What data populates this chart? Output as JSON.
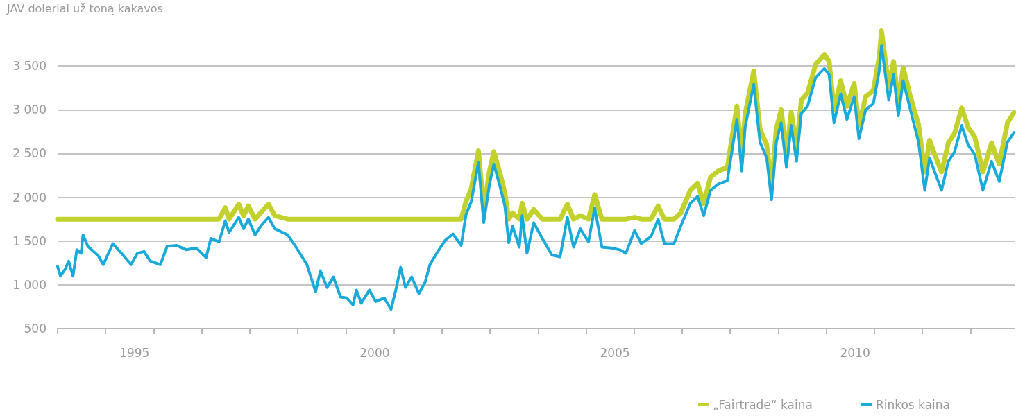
{
  "chart_data": {
    "type": "line",
    "ylabel": "JAV doleriai už toną kakavos",
    "x": [
      1993.4,
      1993.46,
      1993.56,
      1993.63,
      1993.72,
      1993.8,
      1993.89,
      1993.93,
      1994.03,
      1994.25,
      1994.35,
      1994.55,
      1994.73,
      1994.93,
      1995.06,
      1995.2,
      1995.33,
      1995.54,
      1995.68,
      1995.88,
      1996.08,
      1996.29,
      1996.49,
      1996.59,
      1996.76,
      1996.89,
      1996.97,
      1997.17,
      1997.27,
      1997.37,
      1997.51,
      1997.64,
      1997.79,
      1997.92,
      1998.19,
      1998.34,
      1998.59,
      1998.77,
      1998.87,
      1999.01,
      1999.14,
      1999.29,
      1999.42,
      1999.55,
      1999.62,
      1999.72,
      1999.89,
      2000.02,
      2000.2,
      2000.34,
      2000.44,
      2000.54,
      2000.64,
      2000.77,
      2000.92,
      2001.05,
      2001.15,
      2001.29,
      2001.47,
      2001.63,
      2001.8,
      2001.9,
      2002.01,
      2002.16,
      2002.27,
      2002.39,
      2002.48,
      2002.62,
      2002.71,
      2002.79,
      2002.87,
      2003.01,
      2003.07,
      2003.17,
      2003.31,
      2003.49,
      2003.69,
      2003.86,
      2004.01,
      2004.14,
      2004.28,
      2004.45,
      2004.58,
      2004.73,
      2004.93,
      2005.1,
      2005.23,
      2005.41,
      2005.55,
      2005.75,
      2005.9,
      2006.03,
      2006.23,
      2006.37,
      2006.57,
      2006.72,
      2006.85,
      2006.99,
      2007.15,
      2007.34,
      2007.54,
      2007.64,
      2007.71,
      2007.89,
      2008.02,
      2008.16,
      2008.26,
      2008.36,
      2008.46,
      2008.57,
      2008.67,
      2008.78,
      2008.88,
      2009.01,
      2009.18,
      2009.36,
      2009.46,
      2009.56,
      2009.7,
      2009.83,
      2009.98,
      2010.08,
      2010.22,
      2010.38,
      2010.5,
      2010.55,
      2010.7,
      2010.8,
      2010.9,
      2011.0,
      2011.15,
      2011.32,
      2011.45,
      2011.55,
      2011.67,
      2011.8,
      2011.94,
      2012.07,
      2012.22,
      2012.35,
      2012.49,
      2012.66,
      2012.84,
      2013.0,
      2013.17,
      2013.31
    ],
    "series": [
      {
        "name": "„Fairtrade“ kaina",
        "color": "#c3d12d",
        "values": [
          1750,
          1750,
          1750,
          1750,
          1750,
          1750,
          1750,
          1750,
          1750,
          1750,
          1750,
          1750,
          1750,
          1750,
          1750,
          1750,
          1750,
          1750,
          1750,
          1750,
          1750,
          1750,
          1750,
          1750,
          1750,
          1880,
          1750,
          1920,
          1790,
          1900,
          1750,
          1830,
          1920,
          1790,
          1750,
          1750,
          1750,
          1750,
          1750,
          1750,
          1750,
          1750,
          1750,
          1750,
          1750,
          1750,
          1750,
          1750,
          1750,
          1750,
          1750,
          1750,
          1750,
          1750,
          1750,
          1750,
          1750,
          1750,
          1750,
          1750,
          1750,
          1950,
          2100,
          2530,
          1860,
          2300,
          2520,
          2250,
          2050,
          1750,
          1820,
          1750,
          1930,
          1750,
          1860,
          1750,
          1750,
          1750,
          1920,
          1750,
          1790,
          1750,
          2030,
          1750,
          1750,
          1750,
          1750,
          1770,
          1750,
          1750,
          1900,
          1750,
          1750,
          1820,
          2080,
          2160,
          1930,
          2230,
          2300,
          2340,
          3040,
          2450,
          2950,
          3440,
          2780,
          2600,
          2120,
          2780,
          3000,
          2490,
          2970,
          2560,
          3110,
          3190,
          3520,
          3630,
          3550,
          3000,
          3330,
          3040,
          3300,
          2820,
          3150,
          3220,
          3600,
          3900,
          3260,
          3550,
          3080,
          3480,
          3150,
          2830,
          2290,
          2650,
          2470,
          2290,
          2620,
          2730,
          3020,
          2800,
          2690,
          2290,
          2620,
          2380,
          2850,
          2970
        ]
      },
      {
        "name": "Rinkos kaina",
        "color": "#1aaad9",
        "values": [
          1210,
          1100,
          1180,
          1270,
          1100,
          1400,
          1360,
          1570,
          1440,
          1330,
          1230,
          1470,
          1360,
          1230,
          1360,
          1380,
          1270,
          1230,
          1440,
          1450,
          1400,
          1420,
          1310,
          1530,
          1490,
          1730,
          1600,
          1770,
          1640,
          1750,
          1570,
          1680,
          1770,
          1640,
          1570,
          1450,
          1230,
          920,
          1160,
          970,
          1090,
          860,
          850,
          770,
          940,
          790,
          940,
          810,
          850,
          720,
          940,
          1200,
          970,
          1090,
          900,
          1030,
          1230,
          1360,
          1510,
          1580,
          1450,
          1800,
          1950,
          2400,
          1710,
          2150,
          2380,
          2100,
          1900,
          1480,
          1670,
          1430,
          1790,
          1360,
          1710,
          1530,
          1340,
          1320,
          1770,
          1430,
          1640,
          1490,
          1880,
          1430,
          1420,
          1400,
          1360,
          1620,
          1470,
          1550,
          1750,
          1470,
          1470,
          1670,
          1930,
          2010,
          1790,
          2080,
          2150,
          2190,
          2890,
          2300,
          2800,
          3290,
          2630,
          2450,
          1970,
          2630,
          2850,
          2340,
          2820,
          2410,
          2960,
          3040,
          3370,
          3470,
          3400,
          2850,
          3180,
          2890,
          3150,
          2670,
          3000,
          3070,
          3440,
          3730,
          3110,
          3400,
          2930,
          3330,
          3000,
          2630,
          2080,
          2450,
          2270,
          2080,
          2410,
          2520,
          2820,
          2600,
          2490,
          2080,
          2410,
          2180,
          2630,
          2740
        ]
      }
    ],
    "xlim": [
      1993.4,
      2013.32
    ],
    "xticks": [
      {
        "value": 1993.4,
        "label": null
      },
      {
        "value": 1994.4,
        "label": null
      },
      {
        "value": 1995,
        "label": "1995"
      },
      {
        "value": 1995.4,
        "label": null
      },
      {
        "value": 1996.4,
        "label": null
      },
      {
        "value": 1997.4,
        "label": null
      },
      {
        "value": 1998.4,
        "label": null
      },
      {
        "value": 1999.4,
        "label": null
      },
      {
        "value": 2000,
        "label": "2000"
      },
      {
        "value": 2000.4,
        "label": null
      },
      {
        "value": 2001.4,
        "label": null
      },
      {
        "value": 2002.4,
        "label": null
      },
      {
        "value": 2003.4,
        "label": null
      },
      {
        "value": 2004.4,
        "label": null
      },
      {
        "value": 2005,
        "label": "2005"
      },
      {
        "value": 2005.4,
        "label": null
      },
      {
        "value": 2006.4,
        "label": null
      },
      {
        "value": 2007.4,
        "label": null
      },
      {
        "value": 2008.4,
        "label": null
      },
      {
        "value": 2009.4,
        "label": null
      },
      {
        "value": 2010,
        "label": "2010"
      },
      {
        "value": 2010.4,
        "label": null
      },
      {
        "value": 2011.4,
        "label": null
      },
      {
        "value": 2012.4,
        "label": null
      }
    ],
    "ylim": [
      500,
      4000
    ],
    "yticks": [
      {
        "value": 500,
        "label": "500"
      },
      {
        "value": 1000,
        "label": "1 000"
      },
      {
        "value": 1500,
        "label": "1 500"
      },
      {
        "value": 2000,
        "label": "2 000"
      },
      {
        "value": 2500,
        "label": "2 500"
      },
      {
        "value": 3000,
        "label": "3 000"
      },
      {
        "value": 3500,
        "label": "3 500"
      }
    ],
    "grid": "y",
    "legend": "bottom right",
    "marker": "none",
    "line_style": "solid"
  }
}
